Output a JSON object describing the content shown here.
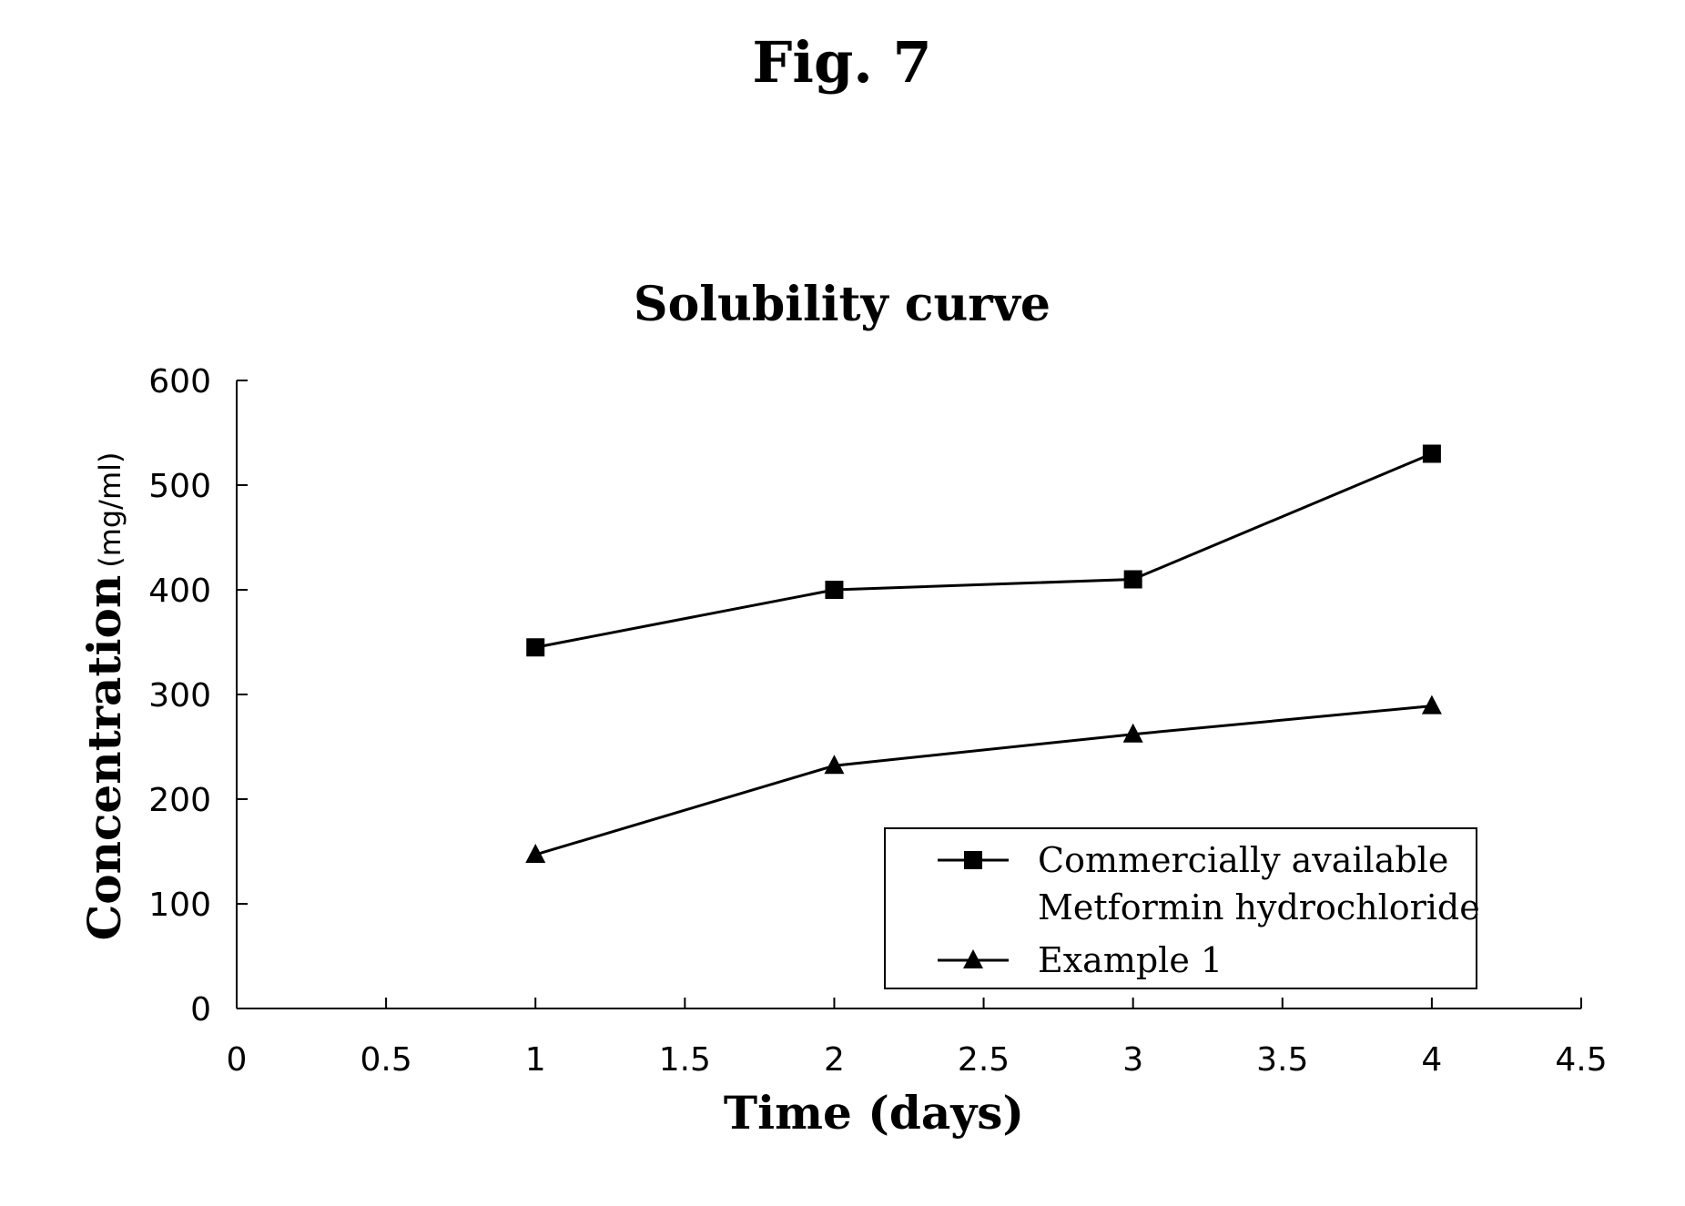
{
  "figure_label": "Fig. 7",
  "chart_data": {
    "type": "line",
    "title": "Solubility curve",
    "xlabel": "Time (days)",
    "ylabel": "Concentration",
    "yunit": "(mg/ml)",
    "xlim": [
      0,
      4.5
    ],
    "ylim": [
      0,
      600
    ],
    "xticks": [
      "0",
      "0.5",
      "1",
      "1.5",
      "2",
      "2.5",
      "3",
      "3.5",
      "4",
      "4.5"
    ],
    "yticks": [
      "0",
      "100",
      "200",
      "300",
      "400",
      "500",
      "600"
    ],
    "grid": false,
    "legend_position": "bottom-right",
    "series": [
      {
        "name": "Commercially available Metformin hydrochloride",
        "legend_lines": [
          "Commercially available",
          "Metformin hydrochloride"
        ],
        "marker": "square",
        "x": [
          1,
          2,
          3,
          4
        ],
        "y": [
          345,
          400,
          410,
          530
        ]
      },
      {
        "name": "Example 1",
        "legend_lines": [
          "Example 1"
        ],
        "marker": "triangle",
        "x": [
          1,
          2,
          3,
          4
        ],
        "y": [
          147,
          232,
          262,
          289
        ]
      }
    ]
  }
}
